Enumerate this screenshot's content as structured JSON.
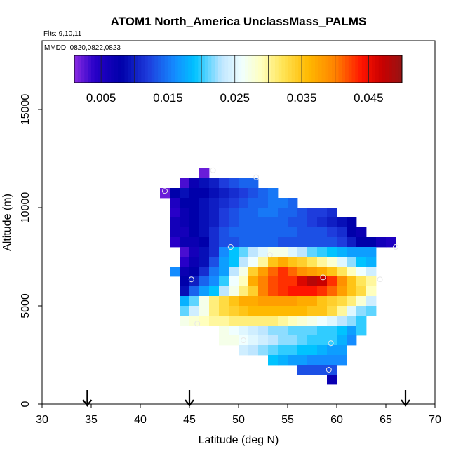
{
  "chart_data": {
    "type": "heatmap",
    "title": "ATOM1 North_America UnclassMass_PALMS",
    "annotations": [
      "Flts: 9,10,11",
      "MMDD: 0820,0822,0823"
    ],
    "xlabel": "Latitude (deg N)",
    "ylabel": "Altitude (m)",
    "xlim": [
      30,
      70
    ],
    "ylim": [
      0,
      18500
    ],
    "xticks": [
      "30",
      "35",
      "40",
      "45",
      "50",
      "55",
      "60",
      "65",
      "70"
    ],
    "yticks": [
      "0",
      "5000",
      "10000",
      "15000"
    ],
    "colorbar": {
      "range": [
        0.001,
        0.05
      ],
      "tick_values": [
        0.005,
        0.015,
        0.025,
        0.035,
        0.045
      ],
      "tick_labels": [
        "0.005",
        "0.015",
        "0.025",
        "0.035",
        "0.045"
      ]
    },
    "arrow_latitudes": [
      34.6,
      45.0,
      67.0
    ],
    "cell_size": {
      "lat": 1.0,
      "alt": 500
    },
    "rows": [
      {
        "alt": 11750,
        "lat_start": 46.5,
        "values": [
          0.002
        ]
      },
      {
        "alt": 11250,
        "lat_start": 44.5,
        "values": [
          0.003,
          0.007,
          0.009,
          0.01,
          0.012,
          0.013,
          0.014,
          0.014
        ]
      },
      {
        "alt": 10750,
        "lat_start": 42.5,
        "values": [
          0.002,
          0.008,
          0.009,
          0.008,
          0.008,
          0.009,
          0.01,
          0.011,
          0.012,
          0.013,
          0.014,
          0.015
        ]
      },
      {
        "alt": 10250,
        "lat_start": 43.5,
        "values": [
          0.005,
          0.008,
          0.008,
          0.009,
          0.01,
          0.011,
          0.012,
          0.013,
          0.014,
          0.014,
          0.015,
          0.015,
          0.014
        ]
      },
      {
        "alt": 9750,
        "lat_start": 43.5,
        "values": [
          0.004,
          0.007,
          0.008,
          0.009,
          0.01,
          0.012,
          0.013,
          0.014,
          0.014,
          0.015,
          0.015,
          0.014,
          0.014,
          0.013,
          0.012,
          0.012,
          0.011
        ]
      },
      {
        "alt": 9250,
        "lat_start": 43.5,
        "values": [
          0.006,
          0.007,
          0.008,
          0.009,
          0.01,
          0.012,
          0.013,
          0.014,
          0.014,
          0.014,
          0.014,
          0.014,
          0.013,
          0.013,
          0.012,
          0.011,
          0.01,
          0.009,
          0.008
        ]
      },
      {
        "alt": 8750,
        "lat_start": 43.5,
        "values": [
          0.006,
          0.006,
          0.008,
          0.009,
          0.011,
          0.013,
          0.014,
          0.014,
          0.014,
          0.014,
          0.014,
          0.014,
          0.014,
          0.013,
          0.013,
          0.013,
          0.012,
          0.011,
          0.008,
          0.007
        ]
      },
      {
        "alt": 8250,
        "lat_start": 43.5,
        "values": [
          0.004,
          0.007,
          0.007,
          0.008,
          0.011,
          0.013,
          0.013,
          0.014,
          0.014,
          0.014,
          0.014,
          0.013,
          0.013,
          0.013,
          0.013,
          0.013,
          0.013,
          0.012,
          0.01,
          0.008,
          0.008,
          0.006,
          0.005
        ]
      },
      {
        "alt": 7750,
        "lat_start": 44.5,
        "values": [
          0.003,
          0.006,
          0.009,
          0.011,
          0.016,
          0.019,
          0.021,
          0.023,
          0.025,
          0.027,
          0.027,
          0.025,
          0.023,
          0.021,
          0.02,
          0.019,
          0.018,
          0.017,
          0.017,
          0.017
        ]
      },
      {
        "alt": 7250,
        "lat_start": 44.5,
        "values": [
          0.004,
          0.007,
          0.009,
          0.013,
          0.017,
          0.019,
          0.023,
          0.026,
          0.03,
          0.035,
          0.037,
          0.035,
          0.034,
          0.032,
          0.03,
          0.028,
          0.025,
          0.022,
          0.019,
          0.018
        ]
      },
      {
        "alt": 6750,
        "lat_start": 43.5,
        "values": [
          0.016,
          0.007,
          0.008,
          0.011,
          0.015,
          0.017,
          0.023,
          0.027,
          0.034,
          0.038,
          0.041,
          0.043,
          0.041,
          0.039,
          0.038,
          0.037,
          0.035,
          0.032,
          0.029,
          0.026,
          0.024
        ]
      },
      {
        "alt": 6250,
        "lat_start": 44.5,
        "values": [
          0.008,
          0.01,
          0.014,
          0.016,
          0.02,
          0.026,
          0.029,
          0.037,
          0.04,
          0.042,
          0.043,
          0.043,
          0.046,
          0.048,
          0.047,
          0.043,
          0.039,
          0.035,
          0.032,
          0.03
        ]
      },
      {
        "alt": 5750,
        "lat_start": 44.5,
        "values": [
          0.009,
          0.014,
          0.017,
          0.019,
          0.023,
          0.027,
          0.031,
          0.034,
          0.04,
          0.042,
          0.043,
          0.044,
          0.044,
          0.044,
          0.043,
          0.041,
          0.038,
          0.035,
          0.033,
          0.029
        ]
      },
      {
        "alt": 5250,
        "lat_start": 44.5,
        "values": [
          0.018,
          0.021,
          0.027,
          0.031,
          0.033,
          0.035,
          0.037,
          0.037,
          0.038,
          0.038,
          0.038,
          0.038,
          0.037,
          0.037,
          0.035,
          0.034,
          0.033,
          0.031,
          0.028,
          0.024
        ]
      },
      {
        "alt": 4750,
        "lat_start": 44.5,
        "values": [
          0.021,
          0.024,
          0.027,
          0.031,
          0.033,
          0.034,
          0.035,
          0.036,
          0.036,
          0.036,
          0.036,
          0.036,
          0.036,
          0.035,
          0.035,
          0.033,
          0.03,
          0.025,
          0.022,
          0.021
        ]
      },
      {
        "alt": 4250,
        "lat_start": 44.5,
        "values": [
          0.027,
          0.028,
          0.029,
          0.03,
          0.03,
          0.031,
          0.031,
          0.031,
          0.031,
          0.031,
          0.03,
          0.029,
          0.028,
          0.027,
          0.026,
          0.025,
          0.023,
          0.022,
          0.02
        ]
      },
      {
        "alt": 3750,
        "lat_start": 48.5,
        "values": [
          0.027,
          0.026,
          0.025,
          0.024,
          0.023,
          0.022,
          0.022,
          0.021,
          0.021,
          0.021,
          0.02,
          0.02,
          0.019,
          0.017,
          0.02
        ]
      },
      {
        "alt": 3250,
        "lat_start": 48.5,
        "values": [
          0.027,
          0.027,
          0.026,
          0.025,
          0.024,
          0.023,
          0.022,
          0.022,
          0.021,
          0.02,
          0.02,
          0.02,
          0.018,
          0.016
        ]
      },
      {
        "alt": 2750,
        "lat_start": 50.5,
        "values": [
          0.024,
          0.023,
          0.022,
          0.021,
          0.02,
          0.02,
          0.019,
          0.019,
          0.018,
          0.017,
          0.017
        ]
      },
      {
        "alt": 2250,
        "lat_start": 53.5,
        "values": [
          0.019,
          0.018,
          0.017,
          0.017,
          0.016,
          0.016,
          0.016,
          0.016
        ]
      },
      {
        "alt": 1750,
        "lat_start": 56.5,
        "values": [
          0.013,
          0.013,
          0.013,
          0.013
        ]
      },
      {
        "alt": 1250,
        "lat_start": 59.5,
        "values": [
          0.007
        ]
      }
    ],
    "sample_points": [
      {
        "lat": 47.4,
        "alt": 11900
      },
      {
        "lat": 51.8,
        "alt": 11550
      },
      {
        "lat": 42.5,
        "alt": 10850
      },
      {
        "lat": 49.2,
        "alt": 8000
      },
      {
        "lat": 53.2,
        "alt": 7600
      },
      {
        "lat": 66.0,
        "alt": 8000
      },
      {
        "lat": 45.2,
        "alt": 6350
      },
      {
        "lat": 58.6,
        "alt": 6450
      },
      {
        "lat": 64.4,
        "alt": 6350
      },
      {
        "lat": 45.8,
        "alt": 4100
      },
      {
        "lat": 50.5,
        "alt": 3250
      },
      {
        "lat": 59.4,
        "alt": 3100
      },
      {
        "lat": 59.2,
        "alt": 1750
      }
    ]
  }
}
